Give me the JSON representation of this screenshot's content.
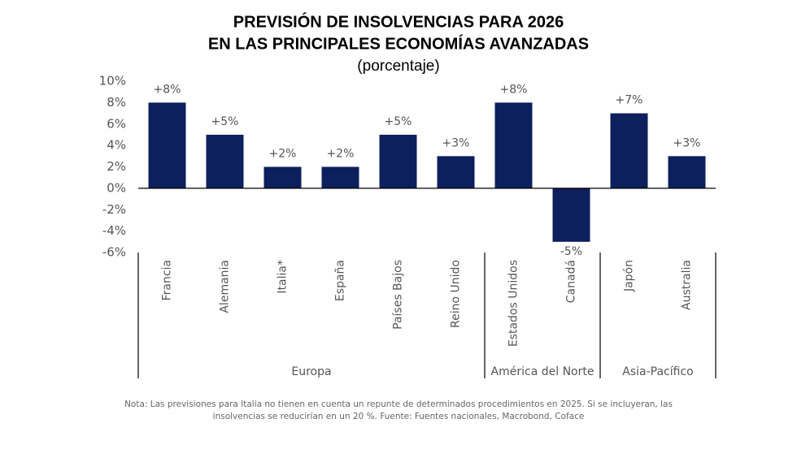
{
  "chart_data": {
    "type": "bar",
    "title": [
      "PREVISIÓN DE INSOLVENCIAS PARA 2026",
      "EN LAS PRINCIPALES ECONOMÍAS AVANZADAS"
    ],
    "subtitle": "(porcentaje)",
    "categories": [
      "Francia",
      "Alemania",
      "Italia*",
      "España",
      "Países Bajos",
      "Reino Unido",
      "Estados Unidos",
      "Canadá",
      "Japón",
      "Australia"
    ],
    "values": [
      8,
      5,
      2,
      2,
      5,
      3,
      8,
      -5,
      7,
      3
    ],
    "value_labels": [
      "+8%",
      "+5%",
      "+2%",
      "+2%",
      "+5%",
      "+3%",
      "+8%",
      "-5%",
      "+7%",
      "+3%"
    ],
    "groups": [
      {
        "name": "Europa",
        "span": 6
      },
      {
        "name": "América del Norte",
        "span": 2
      },
      {
        "name": "Asia-Pacífico",
        "span": 2
      }
    ],
    "color": "#0d1f5c",
    "ylim": [
      -6,
      10
    ],
    "yticks": [
      {
        "value": -6,
        "label": "-6%"
      },
      {
        "value": -4,
        "label": "-4%"
      },
      {
        "value": -2,
        "label": "-2%"
      },
      {
        "value": 0,
        "label": "0%"
      },
      {
        "value": 2,
        "label": "2%"
      },
      {
        "value": 4,
        "label": "4%"
      },
      {
        "value": 6,
        "label": "6%"
      },
      {
        "value": 8,
        "label": "8%"
      },
      {
        "value": 10,
        "label": "10%"
      }
    ],
    "note": [
      "Nota: Las previsiones para Italia no tienen en cuenta un repunte de determinados procedimientos en 2025. Si se incluyeran, las",
      "insolvencias se reducirían en un 20 %. Fuente: Fuentes nacionales, Macrobond, Coface"
    ]
  }
}
